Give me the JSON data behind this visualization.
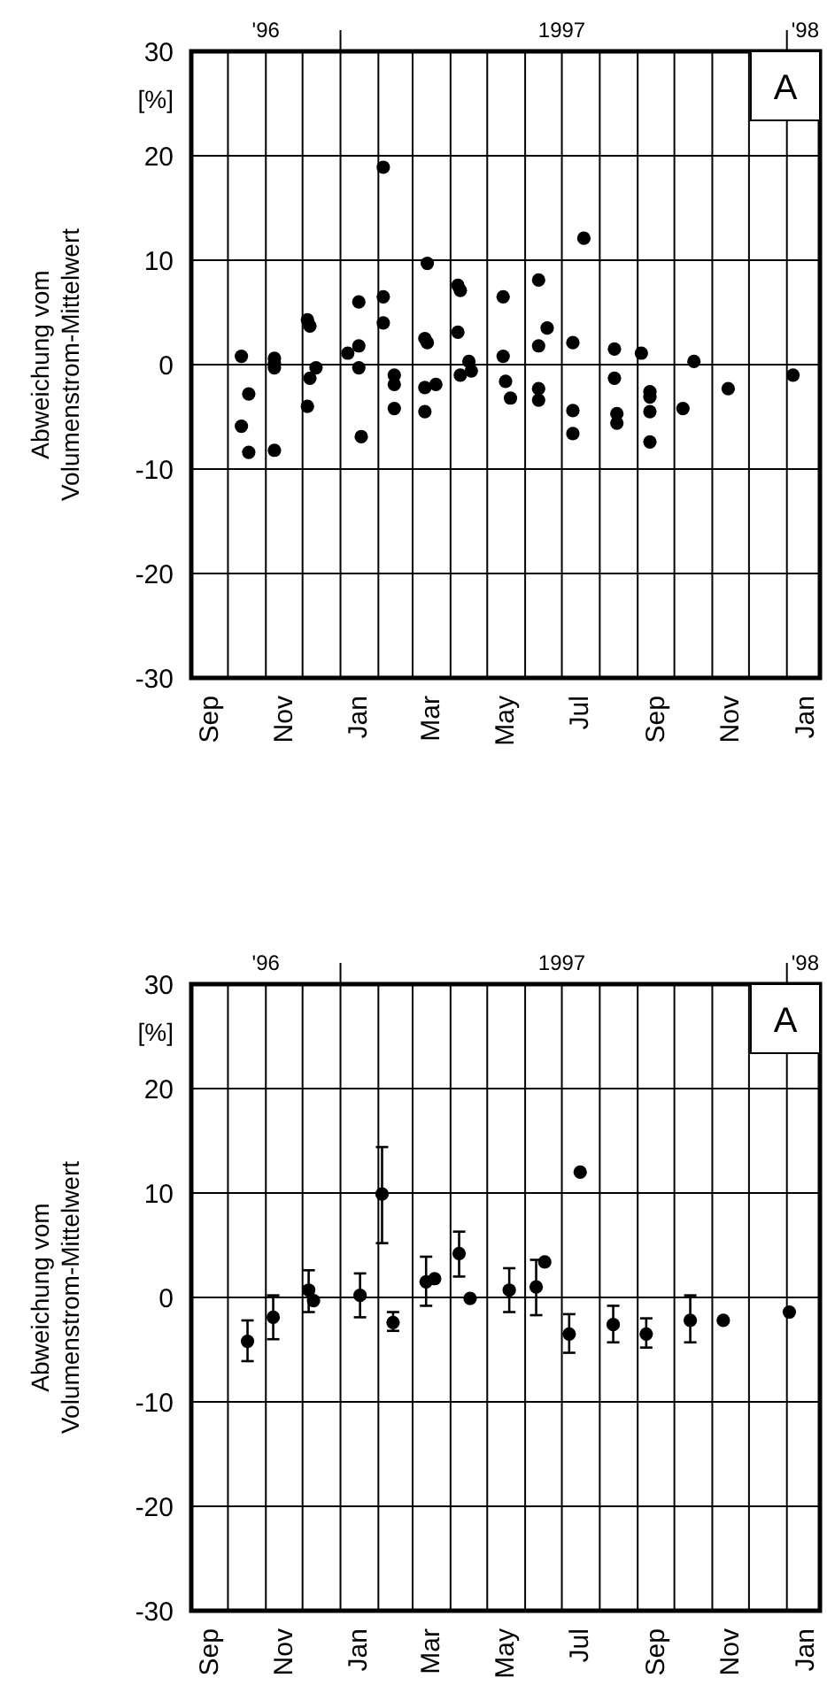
{
  "chart_data": [
    {
      "type": "scatter",
      "ylabel": "Abweichung vom\nVolumenstrom-Mittelwert",
      "annotations": [
        "A",
        "[%]"
      ],
      "marker": "circle",
      "grid": true,
      "xlim": [
        "1996-09-01",
        "1998-01-28"
      ],
      "ylim": [
        -30,
        30
      ],
      "yticks": [
        -30,
        -20,
        -10,
        0,
        10,
        20,
        30
      ],
      "xticks": [
        {
          "value": "1996-09-15",
          "label": "Sep"
        },
        {
          "value": "1996-10-01",
          "label": null
        },
        {
          "value": "1996-11-01",
          "label": null
        },
        {
          "value": "1996-11-15",
          "label": "Nov"
        },
        {
          "value": "1996-12-01",
          "label": null
        },
        {
          "value": "1997-01-01",
          "label": null
        },
        {
          "value": "1997-01-15",
          "label": "Jan"
        },
        {
          "value": "1997-02-01",
          "label": null
        },
        {
          "value": "1997-03-01",
          "label": null
        },
        {
          "value": "1997-03-15",
          "label": "Mar"
        },
        {
          "value": "1997-04-01",
          "label": null
        },
        {
          "value": "1997-05-01",
          "label": null
        },
        {
          "value": "1997-05-15",
          "label": "May"
        },
        {
          "value": "1997-06-01",
          "label": null
        },
        {
          "value": "1997-07-01",
          "label": null
        },
        {
          "value": "1997-07-15",
          "label": "Jul"
        },
        {
          "value": "1997-08-01",
          "label": null
        },
        {
          "value": "1997-09-01",
          "label": null
        },
        {
          "value": "1997-09-15",
          "label": "Sep"
        },
        {
          "value": "1997-10-01",
          "label": null
        },
        {
          "value": "1997-11-01",
          "label": null
        },
        {
          "value": "1997-11-15",
          "label": "Nov"
        },
        {
          "value": "1997-12-01",
          "label": null
        },
        {
          "value": "1998-01-01",
          "label": null
        },
        {
          "value": "1998-01-15",
          "label": "Jan"
        }
      ],
      "x2lim": [
        "1996-09-01",
        "1998-01-28"
      ],
      "x2ticks": [
        {
          "value": "1996-11-01",
          "label": "'96"
        },
        {
          "value": "1997-01-01",
          "label": null
        },
        {
          "value": "1997-07-01",
          "label": "1997"
        },
        {
          "value": "1998-01-01",
          "label": null
        },
        {
          "value": "1998-01-16",
          "label": "'98"
        }
      ],
      "series": [
        {
          "color": "#000000",
          "x": [
            "1996-10-12",
            "1996-10-12",
            "1996-10-18",
            "1996-10-18",
            "1996-11-08",
            "1996-11-08",
            "1996-11-08",
            "1996-11-08",
            "1996-12-05",
            "1996-12-05",
            "1996-12-07",
            "1996-12-07",
            "1996-12-12",
            "1997-01-07",
            "1997-01-16",
            "1997-01-16",
            "1997-01-16",
            "1997-01-18",
            "1997-02-05",
            "1997-02-05",
            "1997-02-05",
            "1997-02-14",
            "1997-02-14",
            "1997-02-14",
            "1997-03-11",
            "1997-03-11",
            "1997-03-11",
            "1997-03-13",
            "1997-03-13",
            "1997-03-20",
            "1997-04-07",
            "1997-04-07",
            "1997-04-09",
            "1997-04-09",
            "1997-04-16",
            "1997-04-18",
            "1997-05-14",
            "1997-05-14",
            "1997-05-16",
            "1997-05-20",
            "1997-06-12",
            "1997-06-12",
            "1997-06-12",
            "1997-06-12",
            "1997-06-19",
            "1997-07-10",
            "1997-07-10",
            "1997-07-10",
            "1997-07-19",
            "1997-08-13",
            "1997-08-13",
            "1997-08-15",
            "1997-08-15",
            "1997-09-04",
            "1997-09-11",
            "1997-09-11",
            "1997-09-11",
            "1997-09-11",
            "1997-10-08",
            "1997-10-17",
            "1997-11-14",
            "1998-01-06"
          ],
          "values": [
            0.8,
            -5.9,
            -2.8,
            -8.4,
            0.6,
            0.1,
            -0.3,
            -8.2,
            4.3,
            -4.0,
            3.7,
            -1.3,
            -0.3,
            1.1,
            6.0,
            1.8,
            -0.3,
            -6.9,
            18.9,
            6.5,
            4.0,
            -1.0,
            -1.9,
            -4.2,
            2.5,
            -2.2,
            -4.5,
            9.7,
            2.1,
            -1.9,
            7.6,
            3.1,
            7.1,
            -1.0,
            0.3,
            -0.6,
            6.5,
            0.8,
            -1.6,
            -3.2,
            8.1,
            1.8,
            -2.3,
            -3.4,
            3.5,
            2.1,
            -4.4,
            -6.6,
            12.1,
            1.5,
            -1.3,
            -4.7,
            -5.6,
            1.1,
            -2.6,
            -3.1,
            -4.5,
            -7.4,
            -4.2,
            0.3,
            -2.3,
            -1.0
          ]
        }
      ]
    },
    {
      "type": "scatter",
      "ylabel": "Abweichung vom\nVolumenstrom-Mittelwert",
      "annotations": [
        "A",
        "[%]"
      ],
      "marker": "circle",
      "grid": true,
      "xlim": [
        "1996-09-01",
        "1998-01-28"
      ],
      "ylim": [
        -30,
        30
      ],
      "yticks": [
        -30,
        -20,
        -10,
        0,
        10,
        20,
        30
      ],
      "xticks": [
        {
          "value": "1996-09-15",
          "label": "Sep"
        },
        {
          "value": "1996-10-01",
          "label": null
        },
        {
          "value": "1996-11-01",
          "label": null
        },
        {
          "value": "1996-11-15",
          "label": "Nov"
        },
        {
          "value": "1996-12-01",
          "label": null
        },
        {
          "value": "1997-01-01",
          "label": null
        },
        {
          "value": "1997-01-15",
          "label": "Jan"
        },
        {
          "value": "1997-02-01",
          "label": null
        },
        {
          "value": "1997-03-01",
          "label": null
        },
        {
          "value": "1997-03-15",
          "label": "Mar"
        },
        {
          "value": "1997-04-01",
          "label": null
        },
        {
          "value": "1997-05-01",
          "label": null
        },
        {
          "value": "1997-05-15",
          "label": "May"
        },
        {
          "value": "1997-06-01",
          "label": null
        },
        {
          "value": "1997-07-01",
          "label": null
        },
        {
          "value": "1997-07-15",
          "label": "Jul"
        },
        {
          "value": "1997-08-01",
          "label": null
        },
        {
          "value": "1997-09-01",
          "label": null
        },
        {
          "value": "1997-09-15",
          "label": "Sep"
        },
        {
          "value": "1997-10-01",
          "label": null
        },
        {
          "value": "1997-11-01",
          "label": null
        },
        {
          "value": "1997-11-15",
          "label": "Nov"
        },
        {
          "value": "1997-12-01",
          "label": null
        },
        {
          "value": "1998-01-01",
          "label": null
        },
        {
          "value": "1998-01-15",
          "label": "Jan"
        }
      ],
      "x2lim": [
        "1996-09-01",
        "1998-01-28"
      ],
      "x2ticks": [
        {
          "value": "1996-11-01",
          "label": "'96"
        },
        {
          "value": "1997-01-01",
          "label": null
        },
        {
          "value": "1997-07-01",
          "label": "1997"
        },
        {
          "value": "1998-01-01",
          "label": null
        },
        {
          "value": "1998-01-16",
          "label": "'98"
        }
      ],
      "series": [
        {
          "color": "#000000",
          "x": [
            "1996-10-17",
            "1996-11-07",
            "1996-12-06",
            "1996-12-10",
            "1997-01-17",
            "1997-02-04",
            "1997-02-13",
            "1997-03-12",
            "1997-03-19",
            "1997-04-08",
            "1997-04-17",
            "1997-05-19",
            "1997-06-10",
            "1997-06-17",
            "1997-07-07",
            "1997-07-16",
            "1997-08-12",
            "1997-09-08",
            "1997-10-14",
            "1997-11-10",
            "1998-01-03"
          ],
          "values": [
            -4.2,
            -1.9,
            0.7,
            -0.3,
            0.2,
            9.9,
            -2.4,
            1.5,
            1.8,
            4.2,
            -0.1,
            0.7,
            1.0,
            3.4,
            -3.5,
            12.0,
            -2.6,
            -3.5,
            -2.2,
            -2.2,
            -1.4
          ],
          "errors": [
            [
              -6.1,
              -2.2
            ],
            [
              -4.0,
              0.2
            ],
            [
              -1.4,
              2.6
            ],
            null,
            [
              -1.9,
              2.3
            ],
            [
              5.2,
              14.4
            ],
            [
              -3.2,
              -1.4
            ],
            [
              -0.8,
              3.9
            ],
            null,
            [
              2.0,
              6.3
            ],
            null,
            [
              -1.4,
              2.8
            ],
            [
              -1.7,
              3.6
            ],
            null,
            [
              -5.3,
              -1.6
            ],
            null,
            [
              -4.3,
              -0.8
            ],
            [
              -4.8,
              -2.0
            ],
            [
              -4.3,
              0.2
            ],
            null,
            null
          ]
        }
      ]
    }
  ]
}
